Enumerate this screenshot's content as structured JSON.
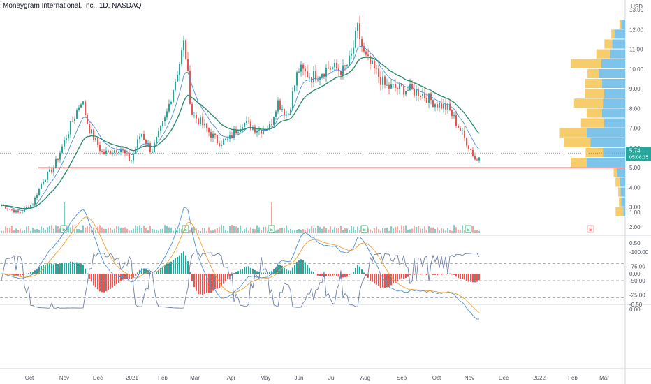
{
  "header": {
    "title": "Moneygram International, Inc., 1D, NASDAQ"
  },
  "currency": "USD",
  "colors": {
    "up": "#26a69a",
    "down": "#ef5350",
    "up_vol": "#7fcfc7",
    "down_vol": "#f4a8a6",
    "ma_fast": "#4a90d9",
    "ma_slow": "#2e8b6e",
    "support": "#e53935",
    "vp_up": "#7ec3ea",
    "vp_down": "#f7cd6b",
    "macd": "#4a90d9",
    "signal": "#f0a030",
    "osc": "#6f7fa8",
    "osc_band": "#ece6f5",
    "text": "#131722",
    "axis": "#505560",
    "grid": "#e0e3eb",
    "earnings": "#4caf7d",
    "last_price_bg": "#26a69a"
  },
  "chart_data": [
    {
      "type": "candlestick",
      "name": "price",
      "title": "Moneygram International, Inc., 1D, NASDAQ",
      "x_ticks": [
        "Oct",
        "Nov",
        "Dec",
        "2021",
        "Feb",
        "Mar",
        "Apr",
        "May",
        "Jun",
        "Jul",
        "Aug",
        "Sep",
        "Oct",
        "Nov",
        "Dec",
        "2022",
        "Feb",
        "Mar"
      ],
      "y_ticks": [
        2.0,
        3.0,
        4.0,
        5.0,
        6.0,
        7.0,
        8.0,
        9.0,
        10.0,
        11.0,
        12.0,
        13.0
      ],
      "y_tick_labels": [
        "2.00",
        "3.00",
        "4.00",
        "5.00",
        "6.00",
        "7.00",
        "8.00",
        "9.00",
        "10.00",
        "11.00",
        "12.00",
        "13.00"
      ],
      "ylim": [
        2.0,
        13.0
      ],
      "last_price": 5.74,
      "last_price_label": "5.74",
      "countdown_label": "05:08:35",
      "support_level": 5.0,
      "anchors": [
        [
          0,
          3.1
        ],
        [
          25,
          2.7
        ],
        [
          45,
          3.2
        ],
        [
          60,
          4.4
        ],
        [
          75,
          5.0
        ],
        [
          100,
          7.2
        ],
        [
          115,
          8.5
        ],
        [
          125,
          7.0
        ],
        [
          145,
          5.7
        ],
        [
          170,
          6.0
        ],
        [
          185,
          5.3
        ],
        [
          200,
          6.8
        ],
        [
          215,
          5.8
        ],
        [
          235,
          7.5
        ],
        [
          250,
          9.6
        ],
        [
          262,
          11.4
        ],
        [
          272,
          7.8
        ],
        [
          290,
          7.1
        ],
        [
          310,
          6.3
        ],
        [
          325,
          6.4
        ],
        [
          345,
          7.3
        ],
        [
          370,
          6.9
        ],
        [
          385,
          7.1
        ],
        [
          395,
          8.4
        ],
        [
          410,
          7.6
        ],
        [
          425,
          10.0
        ],
        [
          445,
          9.6
        ],
        [
          470,
          10.1
        ],
        [
          490,
          9.9
        ],
        [
          500,
          10.5
        ],
        [
          510,
          12.0
        ],
        [
          520,
          10.6
        ],
        [
          535,
          9.9
        ],
        [
          550,
          9.1
        ],
        [
          575,
          9.0
        ],
        [
          600,
          8.8
        ],
        [
          620,
          8.3
        ],
        [
          640,
          8.0
        ],
        [
          660,
          6.7
        ],
        [
          672,
          5.9
        ],
        [
          680,
          5.3
        ],
        [
          686,
          5.74
        ]
      ],
      "candle_step_px": 3,
      "ma_fast_period": 9,
      "ma_slow_period": 21,
      "earnings_marks": [
        91,
        265,
        388,
        521,
        670
      ],
      "earnings_label": "E",
      "future_event_mark": 845,
      "volume_spikes": [
        91,
        388
      ],
      "volume_profile": [
        {
          "price": 12.25,
          "up": 10,
          "down": 5
        },
        {
          "price": 11.75,
          "up": 28,
          "down": 8
        },
        {
          "price": 11.25,
          "up": 34,
          "down": 20
        },
        {
          "price": 10.75,
          "up": 40,
          "down": 35
        },
        {
          "price": 10.25,
          "up": 62,
          "down": 80
        },
        {
          "price": 9.75,
          "up": 68,
          "down": 30
        },
        {
          "price": 9.25,
          "up": 60,
          "down": 45
        },
        {
          "price": 8.75,
          "up": 55,
          "down": 50
        },
        {
          "price": 8.25,
          "up": 58,
          "down": 75
        },
        {
          "price": 7.75,
          "up": 60,
          "down": 40
        },
        {
          "price": 7.25,
          "up": 55,
          "down": 60
        },
        {
          "price": 6.75,
          "up": 100,
          "down": 70
        },
        {
          "price": 6.25,
          "up": 90,
          "down": 70
        },
        {
          "price": 5.75,
          "up": 58,
          "down": 45
        },
        {
          "price": 5.25,
          "up": 100,
          "down": 40
        },
        {
          "price": 4.75,
          "up": 20,
          "down": 10
        },
        {
          "price": 4.25,
          "up": 15,
          "down": 10
        },
        {
          "price": 3.75,
          "up": 12,
          "down": 6
        },
        {
          "price": 3.25,
          "up": 10,
          "down": 6
        },
        {
          "price": 2.75,
          "up": 5,
          "down": 20
        }
      ]
    },
    {
      "type": "macd",
      "name": "macd",
      "y_ticks": [
        -0.5,
        0.0,
        0.5,
        1.0
      ],
      "y_tick_labels": [
        "-0.50",
        "0.00",
        "0.50",
        "1.00"
      ],
      "ylim": [
        -0.85,
        1.1
      ]
    },
    {
      "type": "oscillator",
      "name": "williams-r",
      "y_ticks": [
        0,
        -25,
        -50,
        -75,
        -100
      ],
      "y_tick_labels": [
        "0.00",
        "-25.00",
        "-50.00",
        "-75.00",
        "-100.00"
      ],
      "ylim": [
        -105,
        5
      ],
      "band": [
        -20,
        -80
      ]
    }
  ]
}
